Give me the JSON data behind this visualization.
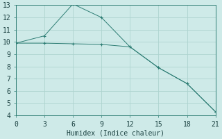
{
  "xlabel": "Humidex (Indice chaleur)",
  "line1_x": [
    0,
    3,
    6,
    9,
    12,
    15,
    18,
    21
  ],
  "line1_y": [
    9.9,
    9.9,
    9.85,
    9.8,
    9.6,
    7.9,
    6.6,
    4.3
  ],
  "line2_x": [
    0,
    3,
    6,
    9,
    12,
    15,
    18,
    21
  ],
  "line2_y": [
    9.9,
    10.5,
    13.1,
    12.0,
    9.6,
    7.9,
    6.6,
    4.3
  ],
  "line_color": "#2d7d74",
  "bg_color": "#ceeae8",
  "grid_color": "#aed4d0",
  "xlim": [
    0,
    21
  ],
  "ylim": [
    4,
    13
  ],
  "xticks": [
    0,
    3,
    6,
    9,
    12,
    15,
    18,
    21
  ],
  "yticks": [
    4,
    5,
    6,
    7,
    8,
    9,
    10,
    11,
    12,
    13
  ],
  "xlabel_fontsize": 7,
  "tick_fontsize": 7
}
